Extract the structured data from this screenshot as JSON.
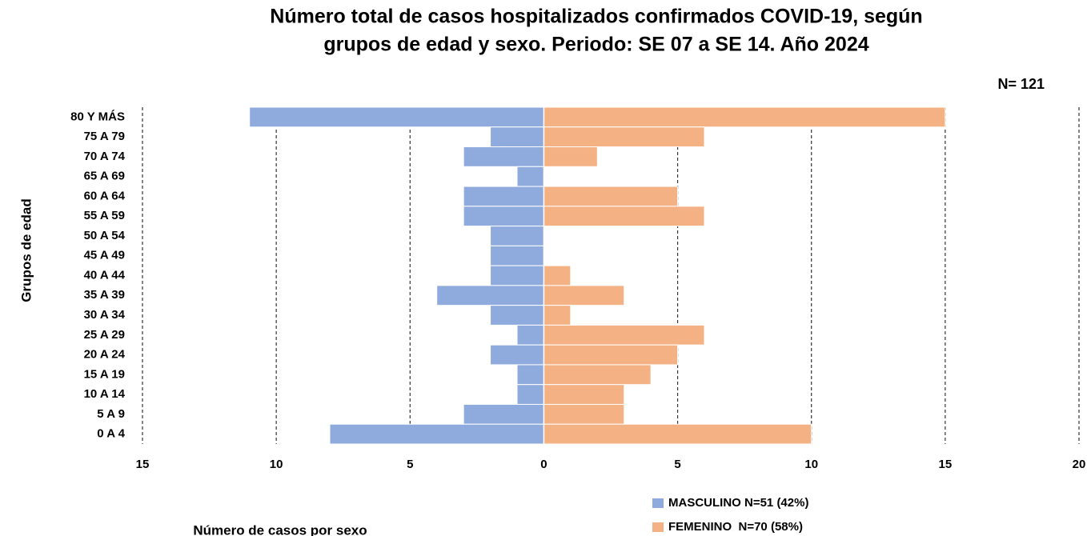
{
  "chart_data": {
    "type": "pyramid",
    "title": "Número total de casos hospitalizados confirmados COVID-19, según",
    "subtitle": "grupos de edad y sexo. Periodo: SE 07 a SE 14. Año 2024",
    "annotation": "N= 121",
    "x_label": "Número de casos por sexo",
    "y_label": "Grupos de edad",
    "categories": [
      "80 Y MÁS",
      "75 A 79",
      "70 A 74",
      "65 A 69",
      "60 A 64",
      "55 A 59",
      "50 A 54",
      "45 A 49",
      "40 A 44",
      "35 A 39",
      "30 A 34",
      "25 A 29",
      "20 A 24",
      "15 A 19",
      "10 A 14",
      "5 A 9",
      "0 A 4"
    ],
    "series": [
      {
        "name": "MASCULINO N=51 (42%)",
        "color": "#8faadc",
        "values": [
          -11,
          -2,
          -3,
          -1,
          -3,
          -3,
          -2,
          -2,
          -2,
          -4,
          -2,
          -1,
          -2,
          -1,
          -1,
          -3,
          -8
        ]
      },
      {
        "name": "FEMENINO  N=70 (58%)",
        "color": "#f4b183",
        "values": [
          15,
          6,
          2,
          0,
          5,
          6,
          0,
          0,
          1,
          3,
          1,
          6,
          5,
          4,
          3,
          3,
          10
        ]
      }
    ],
    "xlim": [
      -15,
      20
    ],
    "xticks": [
      {
        "value": -15,
        "label": "15"
      },
      {
        "value": -10,
        "label": "10"
      },
      {
        "value": -5,
        "label": "5"
      },
      0,
      5,
      10,
      15,
      20
    ],
    "grid": true
  }
}
